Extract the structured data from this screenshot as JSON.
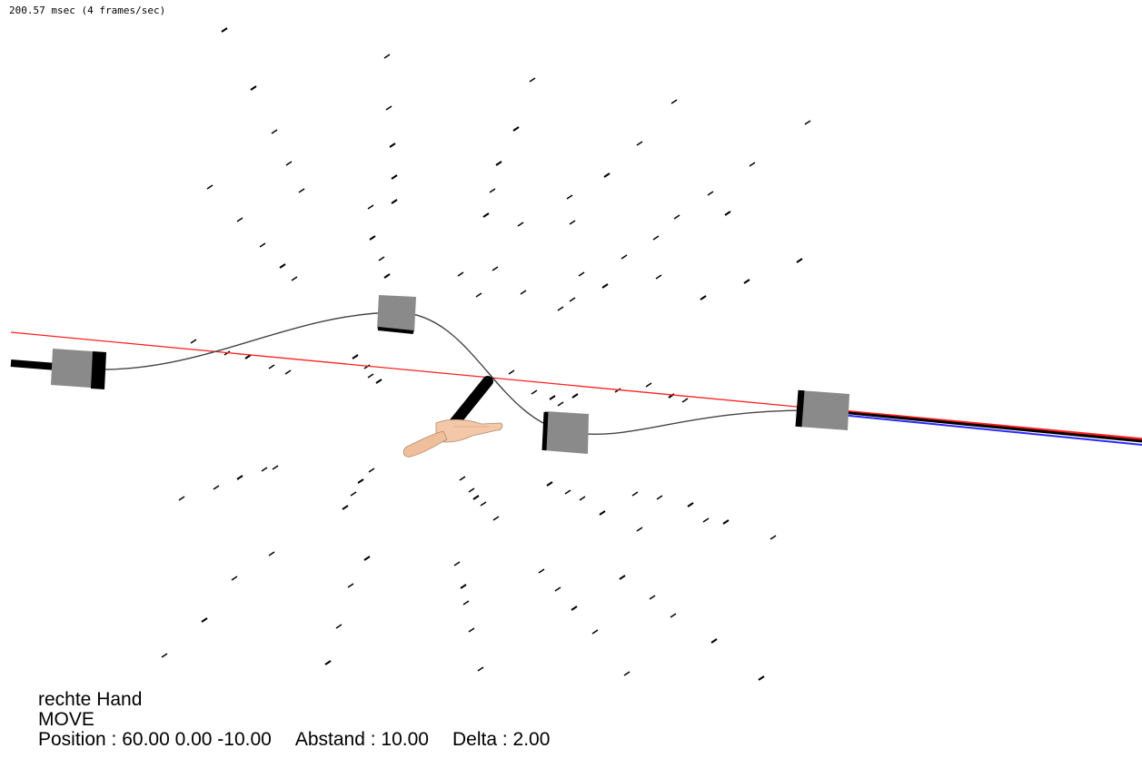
{
  "fps_text": "200.57 msec (4 frames/sec)",
  "status": {
    "object": "rechte Hand",
    "mode": "MOVE",
    "position_label": "Position : ",
    "position_value": "60.00 0.00 -10.00",
    "abstand_label": "Abstand : ",
    "abstand_value": "10.00",
    "delta_label": "Delta : ",
    "delta_value": "2.00"
  },
  "colors": {
    "background": "#ffffff",
    "reference_line": "#ff2020",
    "axis_blue": "#2a2aff",
    "marker": "#000000",
    "keyframe_fill": "#888888",
    "path_curve": "#444444",
    "hand_skin": "#f2c8a8"
  },
  "icons": {
    "hand": "hand-icon"
  }
}
